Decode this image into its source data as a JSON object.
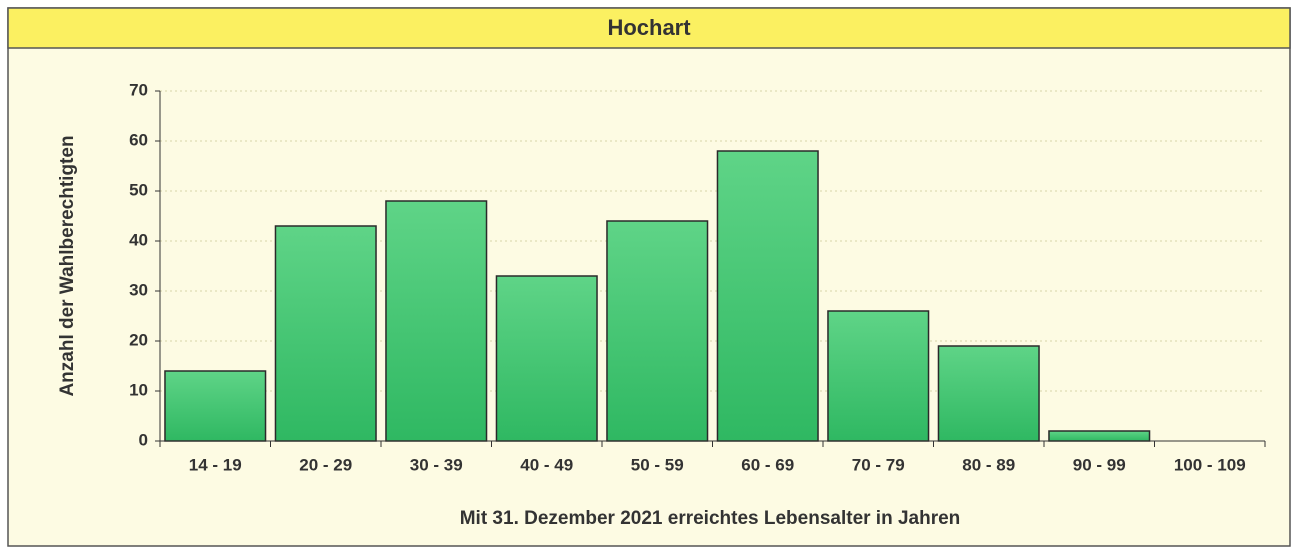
{
  "chart_data": {
    "type": "bar",
    "title": "Hochart",
    "x_label": "Mit 31. Dezember 2021 erreichtes Lebensalter in Jahren",
    "y_label": "Anzahl der Wahlberechtigten",
    "categories": [
      "14 - 19",
      "20 - 29",
      "30 - 39",
      "40 - 49",
      "50 - 59",
      "60 - 69",
      "70 - 79",
      "80 - 89",
      "90 - 99",
      "100 - 109"
    ],
    "values": [
      14,
      43,
      48,
      33,
      44,
      58,
      26,
      19,
      2,
      0
    ],
    "color": "#3ec46f",
    "ylim": [
      0,
      70
    ],
    "yticks": [
      0,
      10,
      20,
      30,
      40,
      50,
      60,
      70
    ],
    "grid": true
  }
}
